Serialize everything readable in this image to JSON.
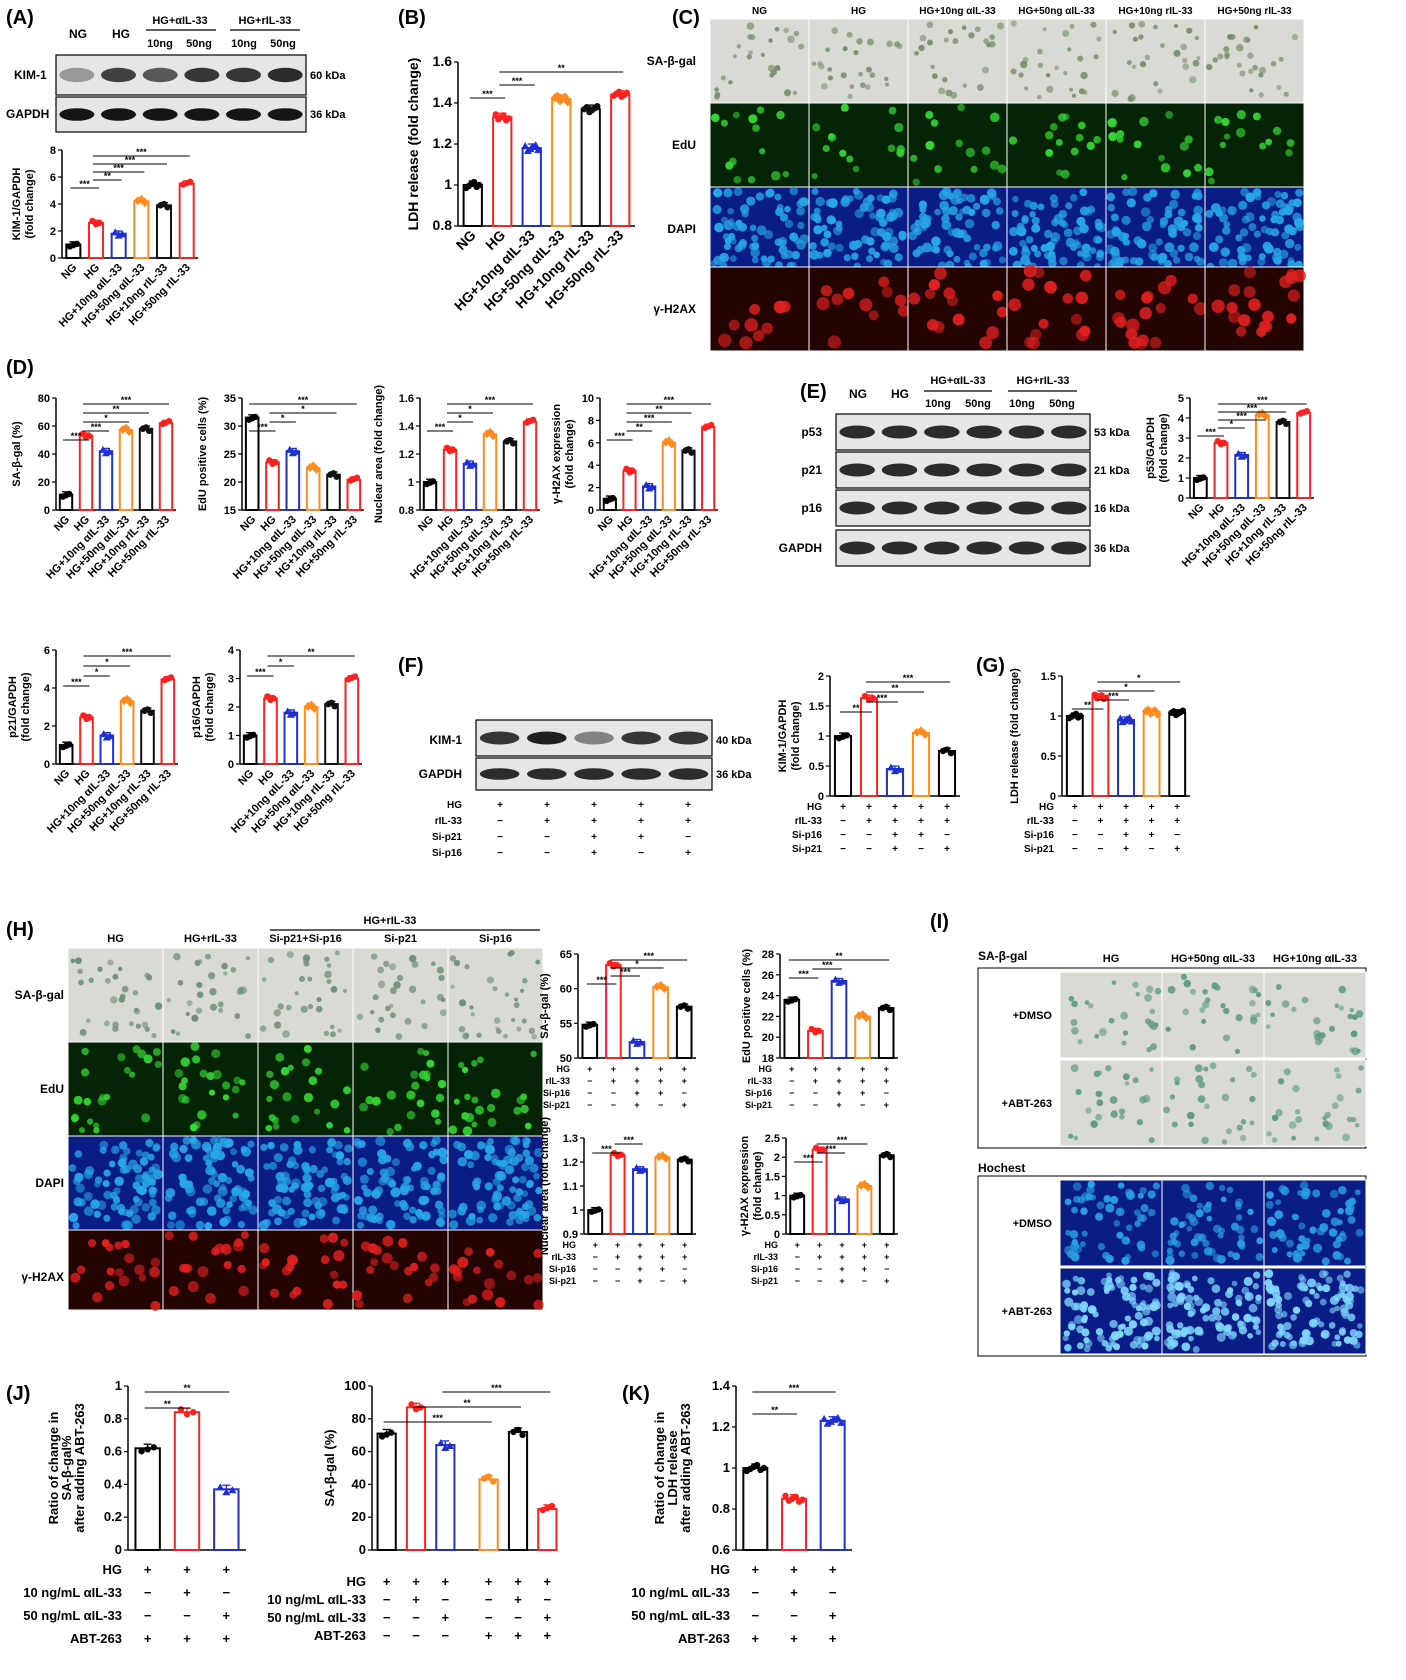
{
  "colors": {
    "NG": "#000000",
    "HG": "#ff2020",
    "a10": "#1f2fd0",
    "a50": "#ff8a1e",
    "r10": "#111111",
    "r50": "#ff2020",
    "img_bw": "#d9dad3",
    "img_green": "#052405",
    "img_blue": "#0a1d86",
    "img_red": "#240303"
  },
  "groups_six": [
    "NG",
    "HG",
    "HG+10ng αIL-33",
    "HG+50ng αIL-33",
    "HG+10ng rIL-33",
    "HG+50ng rIL-33"
  ],
  "panels": {
    "A": {
      "letter": "(A)",
      "lanes": [
        "NG",
        "HG"
      ],
      "group1": "HG+αIL-33",
      "group2": "HG+rIL-33",
      "doses": [
        "10ng",
        "50ng",
        "10ng",
        "50ng"
      ],
      "bands": [
        {
          "name": "KIM-1",
          "kda": "60 kDa"
        },
        {
          "name": "GAPDH",
          "kda": "36 kDa"
        }
      ]
    },
    "B": {
      "letter": "(B)"
    },
    "C": {
      "letter": "(C)",
      "cols": [
        "NG",
        "HG",
        "HG+10ng αIL-33",
        "HG+50ng αIL-33",
        "HG+10ng rIL-33",
        "HG+50ng rIL-33"
      ],
      "rows": [
        "SA-β-gal",
        "EdU",
        "DAPI",
        "γ-H2AX"
      ]
    },
    "D": {
      "letter": "(D)"
    },
    "E": {
      "letter": "(E)",
      "lanes": [
        "NG",
        "HG"
      ],
      "group1": "HG+αIL-33",
      "group2": "HG+rIL-33",
      "doses": [
        "10ng",
        "50ng",
        "10ng",
        "50ng"
      ],
      "bands": [
        {
          "name": "p53",
          "kda": "53 kDa"
        },
        {
          "name": "p21",
          "kda": "21 kDa"
        },
        {
          "name": "p16",
          "kda": "16 kDa"
        },
        {
          "name": "GAPDH",
          "kda": "36 kDa"
        }
      ]
    },
    "F": {
      "letter": "(F)",
      "bands": [
        {
          "name": "KIM-1",
          "kda": "40 kDa"
        },
        {
          "name": "GAPDH",
          "kda": "36 kDa"
        }
      ],
      "treat_rows": [
        {
          "name": "HG",
          "marks": [
            "+",
            "+",
            "+",
            "+",
            "+"
          ]
        },
        {
          "name": "rIL-33",
          "marks": [
            "−",
            "+",
            "+",
            "+",
            "+"
          ]
        },
        {
          "name": "Si-p21",
          "marks": [
            "−",
            "−",
            "+",
            "+",
            "−"
          ]
        },
        {
          "name": "Si-p16",
          "marks": [
            "−",
            "−",
            "+",
            "−",
            "+"
          ]
        }
      ]
    },
    "G": {
      "letter": "(G)"
    },
    "H": {
      "letter": "(H)",
      "group_header": "HG+rIL-33",
      "cols": [
        "HG",
        "HG+rIL-33",
        "Si-p21+Si-p16",
        "Si-p21",
        "Si-p16"
      ],
      "rows": [
        "SA-β-gal",
        "EdU",
        "DAPI",
        "γ-H2AX"
      ]
    },
    "I": {
      "letter": "(I)",
      "cols": [
        "HG",
        "HG+50ng αIL-33",
        "HG+10ng αIL-33"
      ],
      "section1": "SA-β-gal",
      "section2": "Hochest",
      "rows": [
        "+DMSO",
        "+ABT-263",
        "+DMSO",
        "+ABT-263"
      ]
    },
    "J": {
      "letter": "(J)"
    },
    "K": {
      "letter": "(K)"
    }
  },
  "treat_sets": {
    "siRNA": [
      {
        "name": "HG",
        "marks": [
          "+",
          "+",
          "+",
          "+",
          "+"
        ]
      },
      {
        "name": "rIL-33",
        "marks": [
          "−",
          "+",
          "+",
          "+",
          "+"
        ]
      },
      {
        "name": "Si-p16",
        "marks": [
          "−",
          "−",
          "+",
          "+",
          "−"
        ]
      },
      {
        "name": "Si-p21",
        "marks": [
          "−",
          "−",
          "+",
          "−",
          "+"
        ]
      }
    ],
    "J1": [
      {
        "name": "HG",
        "marks": [
          "+",
          "+",
          "+"
        ]
      },
      {
        "name": "10 ng/mL αIL-33",
        "marks": [
          "−",
          "+",
          "−"
        ]
      },
      {
        "name": "50 ng/mL αIL-33",
        "marks": [
          "−",
          "−",
          "+"
        ]
      },
      {
        "name": "ABT-263",
        "marks": [
          "+",
          "+",
          "+"
        ]
      }
    ],
    "J2": [
      {
        "name": "HG",
        "marks": [
          "+",
          "+",
          "+",
          "+",
          "+",
          "+"
        ]
      },
      {
        "name": "10 ng/mL αIL-33",
        "marks": [
          "−",
          "+",
          "−",
          "−",
          "+",
          "−"
        ]
      },
      {
        "name": "50 ng/mL αIL-33",
        "marks": [
          "−",
          "−",
          "+",
          "−",
          "−",
          "+"
        ]
      },
      {
        "name": "ABT-263",
        "marks": [
          "−",
          "−",
          "−",
          "+",
          "+",
          "+"
        ]
      }
    ],
    "K": [
      {
        "name": "HG",
        "marks": [
          "+",
          "+",
          "+"
        ]
      },
      {
        "name": "10 ng/mL αIL-33",
        "marks": [
          "−",
          "+",
          "−"
        ]
      },
      {
        "name": "50 ng/mL αIL-33",
        "marks": [
          "−",
          "−",
          "+"
        ]
      },
      {
        "name": "ABT-263",
        "marks": [
          "+",
          "+",
          "+"
        ]
      }
    ]
  },
  "chart_data": [
    {
      "id": "A",
      "type": "bar",
      "ylabel": "KIM-1/GAPDH (fold change)",
      "categories": [
        "NG",
        "HG",
        "HG+10ng αIL-33",
        "HG+50ng αIL-33",
        "HG+10ng rIL-33",
        "HG+50ng rIL-33"
      ],
      "values": [
        1.0,
        2.6,
        1.8,
        4.2,
        3.9,
        5.5
      ],
      "ylim": [
        0,
        8
      ],
      "yticks": [
        0,
        2,
        4,
        6,
        8
      ],
      "sig": [
        [
          "0",
          "1",
          "***"
        ],
        [
          "1",
          "2",
          "**"
        ],
        [
          "1",
          "3",
          "***"
        ],
        [
          "1",
          "4",
          "***"
        ],
        [
          "1",
          "5",
          "***"
        ]
      ]
    },
    {
      "id": "B",
      "type": "bar",
      "ylabel": "LDH release (fold change)",
      "categories": [
        "NG",
        "HG",
        "HG+10ng αIL-33",
        "HG+50ng αIL-33",
        "HG+10ng rIL-33",
        "HG+50ng rIL-33"
      ],
      "values": [
        1.0,
        1.33,
        1.18,
        1.42,
        1.37,
        1.44
      ],
      "ylim": [
        0.8,
        1.6
      ],
      "yticks": [
        0.8,
        1.0,
        1.2,
        1.4,
        1.6
      ],
      "sig": [
        [
          "0",
          "1",
          "***"
        ],
        [
          "1",
          "2",
          "***"
        ],
        [
          "1",
          "5",
          "**"
        ]
      ]
    },
    {
      "id": "D1",
      "type": "bar",
      "ylabel": "SA-β-gal (%)",
      "categories": [
        "NG",
        "HG",
        "HG+10ng αIL-33",
        "HG+50ng αIL-33",
        "HG+10ng rIL-33",
        "HG+50ng rIL-33"
      ],
      "values": [
        11,
        53,
        42,
        57,
        58,
        62
      ],
      "ylim": [
        0,
        80
      ],
      "yticks": [
        0,
        20,
        40,
        60,
        80
      ],
      "sig": [
        [
          "0",
          "1",
          "***"
        ],
        [
          "1",
          "2",
          "***"
        ],
        [
          "1",
          "3",
          "*"
        ],
        [
          "1",
          "4",
          "**"
        ],
        [
          "1",
          "5",
          "***"
        ]
      ]
    },
    {
      "id": "D2",
      "type": "bar",
      "ylabel": "EdU positive cells (%)",
      "categories": [
        "NG",
        "HG",
        "HG+10ng αIL-33",
        "HG+50ng αIL-33",
        "HG+10ng rIL-33",
        "HG+50ng rIL-33"
      ],
      "values": [
        31.5,
        23.5,
        25.5,
        22.5,
        21.3,
        20.4
      ],
      "ylim": [
        15,
        35
      ],
      "yticks": [
        15,
        20,
        25,
        30,
        35
      ],
      "sig": [
        [
          "0",
          "1",
          "***"
        ],
        [
          "1",
          "2",
          "*"
        ],
        [
          "1",
          "4",
          "*"
        ],
        [
          "0",
          "5",
          "***"
        ]
      ]
    },
    {
      "id": "D3",
      "type": "bar",
      "ylabel": "Nuclear area (fold change)",
      "categories": [
        "NG",
        "HG",
        "HG+10ng αIL-33",
        "HG+50ng αIL-33",
        "HG+10ng rIL-33",
        "HG+50ng rIL-33"
      ],
      "values": [
        1.0,
        1.23,
        1.13,
        1.34,
        1.29,
        1.43
      ],
      "ylim": [
        0.8,
        1.6
      ],
      "yticks": [
        0.8,
        1.0,
        1.2,
        1.4,
        1.6
      ],
      "sig": [
        [
          "0",
          "1",
          "***"
        ],
        [
          "1",
          "2",
          "*"
        ],
        [
          "1",
          "3",
          "*"
        ],
        [
          "1",
          "5",
          "***"
        ]
      ]
    },
    {
      "id": "D4",
      "type": "bar",
      "ylabel": "γ-H2AX expression (fold change)",
      "categories": [
        "NG",
        "HG",
        "HG+10ng αIL-33",
        "HG+50ng αIL-33",
        "HG+10ng rIL-33",
        "HG+50ng rIL-33"
      ],
      "values": [
        1.0,
        3.5,
        2.1,
        6.0,
        5.3,
        7.4
      ],
      "ylim": [
        0,
        10
      ],
      "yticks": [
        0,
        2,
        4,
        6,
        8,
        10
      ],
      "sig": [
        [
          "0",
          "1",
          "***"
        ],
        [
          "1",
          "2",
          "**"
        ],
        [
          "1",
          "3",
          "***"
        ],
        [
          "1",
          "4",
          "**"
        ],
        [
          "1",
          "5",
          "***"
        ]
      ]
    },
    {
      "id": "E",
      "type": "bar",
      "ylabel": "p53/GAPDH (fold change)",
      "categories": [
        "NG",
        "HG",
        "HG+10ng αIL-33",
        "HG+50ng αIL-33",
        "HG+10ng rIL-33",
        "HG+50ng rIL-33"
      ],
      "values": [
        1.0,
        2.75,
        2.15,
        4.15,
        3.8,
        4.25
      ],
      "ylim": [
        0,
        5
      ],
      "yticks": [
        0,
        1,
        2,
        3,
        4,
        5
      ],
      "sig": [
        [
          "0",
          "1",
          "***"
        ],
        [
          "1",
          "2",
          "*"
        ],
        [
          "1",
          "3",
          "***"
        ],
        [
          "1",
          "4",
          "***"
        ],
        [
          "1",
          "5",
          "***"
        ]
      ]
    },
    {
      "id": "E2",
      "type": "bar",
      "ylabel": "p21/GAPDH (fold change)",
      "categories": [
        "NG",
        "HG",
        "HG+10ng αIL-33",
        "HG+50ng αIL-33",
        "HG+10ng rIL-33",
        "HG+50ng rIL-33"
      ],
      "values": [
        1.0,
        2.45,
        1.5,
        3.3,
        2.8,
        4.45
      ],
      "ylim": [
        0,
        6
      ],
      "yticks": [
        0,
        2,
        4,
        6
      ],
      "sig": [
        [
          "0",
          "1",
          "***"
        ],
        [
          "1",
          "2",
          "*"
        ],
        [
          "1",
          "3",
          "*"
        ],
        [
          "1",
          "5",
          "***"
        ]
      ]
    },
    {
      "id": "E3",
      "type": "bar",
      "ylabel": "p16/GAPDH (fold change)",
      "categories": [
        "NG",
        "HG",
        "HG+10ng αIL-33",
        "HG+50ng αIL-33",
        "HG+10ng rIL-33",
        "HG+50ng rIL-33"
      ],
      "values": [
        1.0,
        2.3,
        1.8,
        2.0,
        2.1,
        3.0
      ],
      "ylim": [
        0,
        4
      ],
      "yticks": [
        0,
        1,
        2,
        3,
        4
      ],
      "sig": [
        [
          "0",
          "1",
          "***"
        ],
        [
          "1",
          "2",
          "*"
        ],
        [
          "1",
          "5",
          "**"
        ]
      ]
    },
    {
      "id": "F",
      "type": "bar",
      "ylabel": "KIM-1/GAPDH (fold change)",
      "categories": [
        "1",
        "2",
        "3",
        "4",
        "5"
      ],
      "values": [
        1.0,
        1.63,
        0.45,
        1.05,
        0.75
      ],
      "ylim": [
        0,
        2.0
      ],
      "yticks": [
        0.0,
        0.5,
        1.0,
        1.5,
        2.0
      ],
      "sig": [
        [
          "0",
          "1",
          "**"
        ],
        [
          "1",
          "2",
          "***"
        ],
        [
          "1",
          "3",
          "**"
        ],
        [
          "1",
          "4",
          "***"
        ]
      ]
    },
    {
      "id": "G",
      "type": "bar",
      "ylabel": "LDH release (fold change)",
      "categories": [
        "1",
        "2",
        "3",
        "4",
        "5"
      ],
      "values": [
        1.0,
        1.24,
        0.95,
        1.05,
        1.04
      ],
      "ylim": [
        0,
        1.5
      ],
      "yticks": [
        0.0,
        0.5,
        1.0,
        1.5
      ],
      "sig": [
        [
          "0",
          "1",
          "**"
        ],
        [
          "1",
          "2",
          "***"
        ],
        [
          "1",
          "3",
          "*"
        ],
        [
          "1",
          "4",
          "*"
        ]
      ]
    },
    {
      "id": "H1",
      "type": "bar",
      "ylabel": "SA-β-gal (%)",
      "categories": [
        "1",
        "2",
        "3",
        "4",
        "5"
      ],
      "values": [
        54.8,
        63.4,
        52.3,
        60.2,
        57.4
      ],
      "ylim": [
        50,
        65
      ],
      "yticks": [
        50,
        55,
        60,
        65
      ],
      "sig": [
        [
          "0",
          "1",
          "***"
        ],
        [
          "1",
          "2",
          "***"
        ],
        [
          "1",
          "3",
          "*"
        ],
        [
          "1",
          "4",
          "***"
        ]
      ]
    },
    {
      "id": "H2",
      "type": "bar",
      "ylabel": "EdU positive cells (%)",
      "categories": [
        "1",
        "2",
        "3",
        "4",
        "5"
      ],
      "values": [
        23.6,
        20.6,
        25.4,
        22.0,
        22.8
      ],
      "ylim": [
        18,
        28
      ],
      "yticks": [
        18,
        20,
        22,
        24,
        26,
        28
      ],
      "sig": [
        [
          "0",
          "1",
          "***"
        ],
        [
          "1",
          "2",
          "***"
        ],
        [
          "0",
          "4",
          "**"
        ]
      ]
    },
    {
      "id": "H3",
      "type": "bar",
      "ylabel": "Nuclear area (fold change)",
      "categories": [
        "1",
        "2",
        "3",
        "4",
        "5"
      ],
      "values": [
        1.0,
        1.23,
        1.17,
        1.22,
        1.21
      ],
      "ylim": [
        0.9,
        1.3
      ],
      "yticks": [
        0.9,
        1.0,
        1.1,
        1.2,
        1.3
      ],
      "sig": [
        [
          "0",
          "1",
          "***"
        ],
        [
          "1",
          "2",
          "***"
        ]
      ]
    },
    {
      "id": "H4",
      "type": "bar",
      "ylabel": "γ-H2AX expression (fold change)",
      "categories": [
        "1",
        "2",
        "3",
        "4",
        "5"
      ],
      "values": [
        1.0,
        2.2,
        0.9,
        1.25,
        2.05
      ],
      "ylim": [
        0,
        2.5
      ],
      "yticks": [
        0.0,
        0.5,
        1.0,
        1.5,
        2.0,
        2.5
      ],
      "sig": [
        [
          "0",
          "1",
          "***"
        ],
        [
          "1",
          "2",
          "***"
        ],
        [
          "1",
          "3",
          "***"
        ]
      ]
    },
    {
      "id": "J1",
      "type": "bar",
      "ylabel": "Ratio of change in SA-β-gal% after adding ABT-263",
      "categories": [
        "1",
        "2",
        "3"
      ],
      "values": [
        0.62,
        0.84,
        0.37
      ],
      "ylim": [
        0,
        1.0
      ],
      "yticks": [
        0.0,
        0.2,
        0.4,
        0.6,
        0.8,
        1.0
      ],
      "sig": [
        [
          "0",
          "1",
          "**"
        ],
        [
          "0",
          "2",
          "**"
        ]
      ]
    },
    {
      "id": "J2",
      "type": "bar",
      "ylabel": "SA-β-gal (%)",
      "categories": [
        "1",
        "2",
        "3",
        "4",
        "5",
        "6"
      ],
      "values": [
        71,
        87,
        64,
        43,
        72,
        25
      ],
      "ylim": [
        0,
        100
      ],
      "yticks": [
        0,
        20,
        40,
        60,
        80,
        100
      ],
      "sig": [
        [
          "0",
          "3",
          "***"
        ],
        [
          "1",
          "4",
          "**"
        ],
        [
          "2",
          "5",
          "***"
        ]
      ]
    },
    {
      "id": "K",
      "type": "bar",
      "ylabel": "Ratio of change in LDH release after adding ABT-263",
      "categories": [
        "1",
        "2",
        "3"
      ],
      "values": [
        1.0,
        0.85,
        1.23
      ],
      "ylim": [
        0.6,
        1.4
      ],
      "yticks": [
        0.6,
        0.8,
        1.0,
        1.2,
        1.4
      ],
      "sig": [
        [
          "0",
          "1",
          "**"
        ],
        [
          "0",
          "2",
          "***"
        ]
      ]
    }
  ]
}
